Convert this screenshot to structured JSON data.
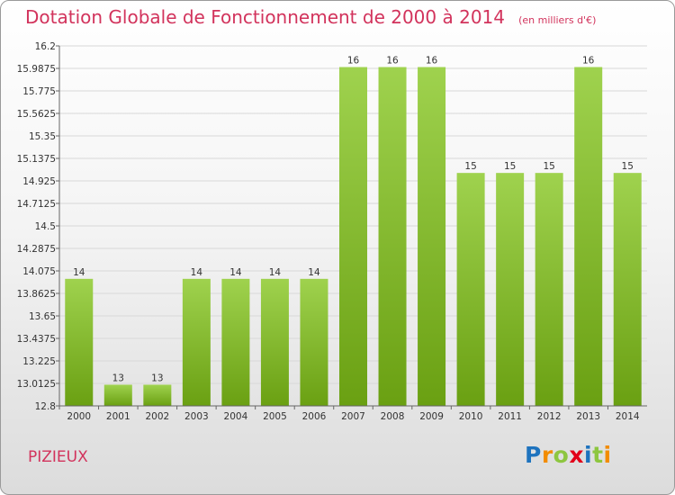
{
  "title": "Dotation Globale de Fonctionnement de 2000 à 2014",
  "subtitle": "(en milliers d'€)",
  "commune": "PIZIEUX",
  "logo": {
    "letters": [
      "P",
      "r",
      "o",
      "x",
      "i",
      "t",
      "i"
    ],
    "colors": [
      "#1e73be",
      "#f28c00",
      "#8dc63f",
      "#e2001a",
      "#1e73be",
      "#8dc63f",
      "#f28c00"
    ]
  },
  "chart_data": {
    "type": "bar",
    "title": "Dotation Globale de Fonctionnement de 2000 à 2014",
    "xlabel": "",
    "ylabel": "(en milliers d'€)",
    "categories": [
      "2000",
      "2001",
      "2002",
      "2003",
      "2004",
      "2005",
      "2006",
      "2007",
      "2008",
      "2009",
      "2010",
      "2011",
      "2012",
      "2013",
      "2014"
    ],
    "values": [
      14,
      13,
      13,
      14,
      14,
      14,
      14,
      16,
      16,
      16,
      15,
      15,
      15,
      16,
      15
    ],
    "value_labels": [
      "14",
      "13",
      "13",
      "14",
      "14",
      "14",
      "14",
      "16",
      "16",
      "16",
      "15",
      "15",
      "15",
      "16",
      "15"
    ],
    "ylim": [
      12.8,
      16.2
    ],
    "yticks": [
      12.8,
      13.0125,
      13.225,
      13.4375,
      13.65,
      13.8625,
      14.075,
      14.2875,
      14.5,
      14.7125,
      14.925,
      15.1375,
      15.35,
      15.5625,
      15.775,
      15.9875,
      16.2
    ],
    "ytick_labels": [
      "12.8",
      "13.0125",
      "13.225",
      "13.4375",
      "13.65",
      "13.8625",
      "14.075",
      "14.2875",
      "14.5",
      "14.7125",
      "14.925",
      "15.1375",
      "15.35",
      "15.5625",
      "15.775",
      "15.9875",
      "16.2"
    ],
    "grid": true,
    "colors": {
      "bar_light": "#9fd24e",
      "bar_dark": "#6aa012",
      "grid": "#d8d8d8",
      "title": "#d2335c"
    }
  }
}
